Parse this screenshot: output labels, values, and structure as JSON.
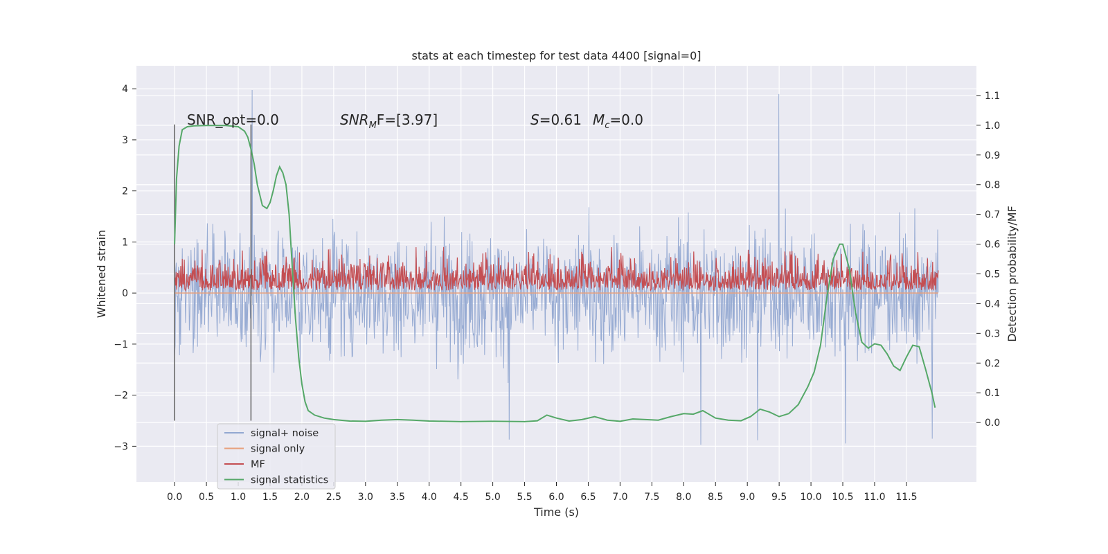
{
  "chart_data": {
    "type": "line",
    "title": "stats at each timestep for test data 4400 [signal=0]",
    "xlabel": "Time (s)",
    "ylabel": "Whitened strain",
    "y2label": "Detection probability/MF",
    "xlim": [
      -0.6,
      12.6
    ],
    "ylim": [
      -3.7,
      4.45
    ],
    "y2lim": [
      -0.2,
      1.2
    ],
    "xticks": [
      "0.0",
      "0.5",
      "1.0",
      "1.5",
      "2.0",
      "2.5",
      "3.0",
      "3.5",
      "4.0",
      "4.5",
      "5.0",
      "5.5",
      "6.0",
      "6.5",
      "7.0",
      "7.5",
      "8.0",
      "8.5",
      "9.0",
      "9.5",
      "10.0",
      "10.5",
      "11.0",
      "11.5"
    ],
    "yticks": [
      "4",
      "3",
      "2",
      "1",
      "0",
      "−1",
      "−2",
      "−3"
    ],
    "y2ticks": [
      "1.1",
      "1.0",
      "0.9",
      "0.8",
      "0.7",
      "0.6",
      "0.5",
      "0.4",
      "0.3",
      "0.2",
      "0.1",
      "0.0"
    ],
    "grid": true,
    "annotations": {
      "snr_opt": "SNR_opt=0.0",
      "snr_mf_base": "SNR",
      "snr_mf_sub": "M",
      "snr_mf_rest": "F=[3.97]",
      "s_italic": "S",
      "s_rest": "=0.61",
      "mc_base": "M",
      "mc_sub": "c",
      "mc_rest": "=0.0"
    },
    "vertical_markers": [
      0.0,
      1.2
    ],
    "legend_position": "lower-left",
    "series": [
      {
        "name": "signal+ noise",
        "color": "#92a8d1",
        "axis": "left",
        "description_values": {
          "t_start": 0.0,
          "t_end": 12.0,
          "envelope_low": -2.5,
          "envelope_high": 2.5,
          "max": 4.1,
          "min": -3.3
        }
      },
      {
        "name": "signal only",
        "color": "#e8a07c",
        "axis": "left",
        "x": [
          0.0,
          12.0
        ],
        "y": [
          0.0,
          0.0
        ]
      },
      {
        "name": "MF",
        "color": "#c44e52",
        "axis": "left",
        "description_values": {
          "t_start": 0.0,
          "t_end": 12.0,
          "baseline": 0.05,
          "mean": 0.3,
          "max": 0.9
        }
      },
      {
        "name": "signal statistics",
        "color": "#55a868",
        "axis": "right",
        "x": [
          0.0,
          0.03,
          0.07,
          0.12,
          0.2,
          0.3,
          0.5,
          0.8,
          1.0,
          1.1,
          1.15,
          1.2,
          1.25,
          1.3,
          1.38,
          1.45,
          1.5,
          1.55,
          1.6,
          1.65,
          1.7,
          1.75,
          1.8,
          1.85,
          1.9,
          1.95,
          2.0,
          2.05,
          2.1,
          2.2,
          2.35,
          2.5,
          2.75,
          3.0,
          3.25,
          3.5,
          3.75,
          4.0,
          4.5,
          5.0,
          5.5,
          5.7,
          5.85,
          6.0,
          6.2,
          6.4,
          6.6,
          6.8,
          7.0,
          7.2,
          7.4,
          7.6,
          7.8,
          8.0,
          8.15,
          8.3,
          8.5,
          8.7,
          8.9,
          9.05,
          9.2,
          9.35,
          9.5,
          9.65,
          9.8,
          9.95,
          10.05,
          10.15,
          10.25,
          10.35,
          10.45,
          10.5,
          10.6,
          10.7,
          10.8,
          10.9,
          11.0,
          11.1,
          11.2,
          11.3,
          11.4,
          11.5,
          11.6,
          11.7,
          11.8,
          11.9,
          11.95
        ],
        "y": [
          0.6,
          0.82,
          0.93,
          0.985,
          0.995,
          0.998,
          0.999,
          0.999,
          0.995,
          0.98,
          0.96,
          0.92,
          0.87,
          0.8,
          0.73,
          0.72,
          0.74,
          0.78,
          0.83,
          0.86,
          0.84,
          0.8,
          0.7,
          0.52,
          0.35,
          0.22,
          0.13,
          0.07,
          0.04,
          0.025,
          0.015,
          0.01,
          0.005,
          0.004,
          0.008,
          0.01,
          0.008,
          0.005,
          0.003,
          0.004,
          0.003,
          0.006,
          0.025,
          0.015,
          0.005,
          0.01,
          0.02,
          0.008,
          0.004,
          0.012,
          0.01,
          0.008,
          0.02,
          0.03,
          0.028,
          0.04,
          0.015,
          0.008,
          0.006,
          0.02,
          0.045,
          0.035,
          0.02,
          0.03,
          0.06,
          0.12,
          0.17,
          0.26,
          0.42,
          0.55,
          0.6,
          0.6,
          0.52,
          0.37,
          0.27,
          0.25,
          0.265,
          0.26,
          0.23,
          0.19,
          0.175,
          0.22,
          0.26,
          0.255,
          0.18,
          0.1,
          0.05
        ]
      }
    ]
  }
}
